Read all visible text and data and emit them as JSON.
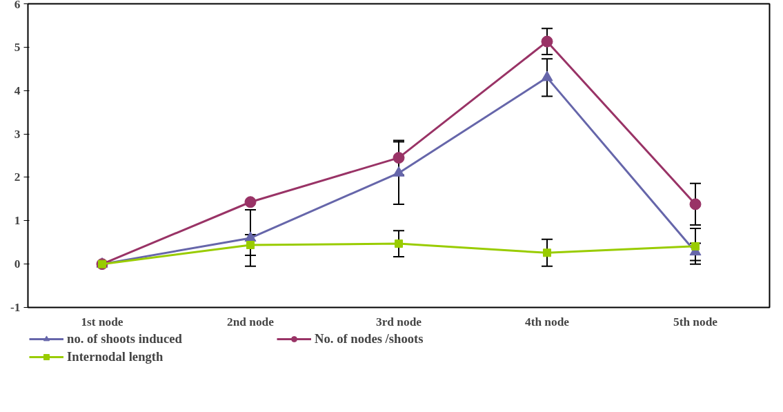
{
  "chart_data": {
    "type": "line",
    "categories": [
      "1st node",
      "2nd node",
      "3rd node",
      "4th node",
      "5th node"
    ],
    "ylim": [
      -1,
      6
    ],
    "yticks": [
      -1,
      0,
      1,
      2,
      3,
      4,
      5,
      6
    ],
    "grid": false,
    "legend": "bottom",
    "line_style": "solid",
    "series": [
      {
        "name": "no. of shoots induced",
        "color": "#6666aa",
        "marker": "triangle",
        "values": [
          0,
          0.6,
          2.1,
          4.3,
          0.28
        ],
        "errors": [
          null,
          0.65,
          0.72,
          0.43,
          0.2
        ]
      },
      {
        "name": "No. of nodes /shoots",
        "color": "#993366",
        "marker": "circle",
        "values": [
          0,
          1.43,
          2.45,
          5.13,
          1.38
        ],
        "errors": [
          null,
          null,
          0.4,
          0.3,
          0.48
        ]
      },
      {
        "name": "Internodal length",
        "color": "#99cc00",
        "marker": "square",
        "values": [
          0,
          0.44,
          0.47,
          0.26,
          0.41
        ],
        "errors": [
          null,
          0.24,
          0.3,
          0.31,
          0.41
        ]
      }
    ]
  }
}
